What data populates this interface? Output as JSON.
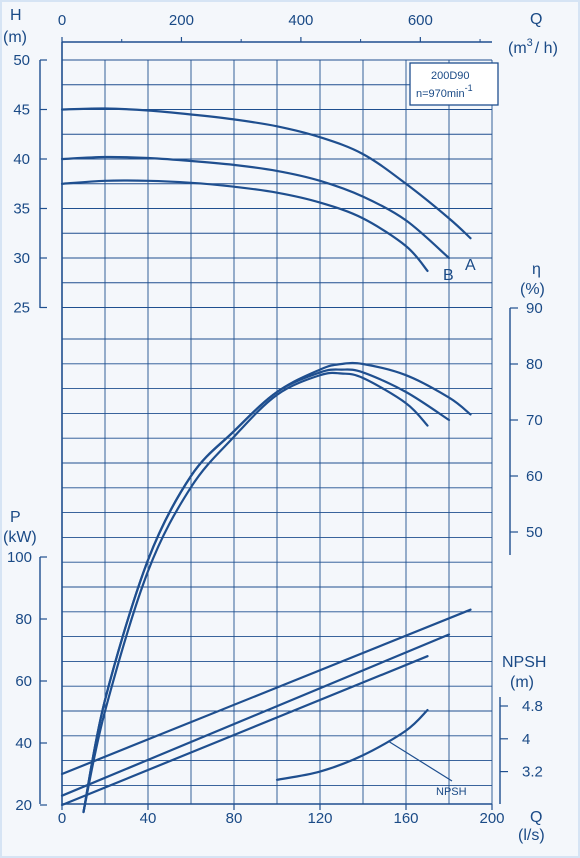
{
  "colors": {
    "line": "#1f4f8f",
    "grid": "#1f4f8f",
    "frame": "#d6e4f4",
    "text": "#1a4a86"
  },
  "labels": {
    "h_axis_title": "H",
    "h_axis_unit": "(m)",
    "q_top_title": "Q",
    "q_top_unit_open": "(m",
    "q_top_unit_sup": "3",
    "q_top_unit_close": "/ h)",
    "eta_title": "η",
    "eta_unit": "(%)",
    "p_title": "P",
    "p_unit": "(kW)",
    "npsh_title": "NPSH",
    "npsh_unit": "(m)",
    "q_bottom_title": "Q",
    "q_bottom_unit": "(l/s)",
    "model": "200D90",
    "speed_prefix": "n=970min",
    "speed_sup": "-1",
    "curve_a": "A",
    "curve_b": "B",
    "npsh_callout": "NPSH"
  },
  "chart_data": {
    "type": "line",
    "x_ticks_top": [
      "0",
      "200",
      "400",
      "600"
    ],
    "x_ticks_bottom": [
      "0",
      "40",
      "80",
      "120",
      "160",
      "200"
    ],
    "head_ticks": [
      "25",
      "30",
      "35",
      "40",
      "45",
      "50"
    ],
    "eff_ticks": [
      "50",
      "60",
      "70",
      "80",
      "90"
    ],
    "power_ticks": [
      "20",
      "40",
      "60",
      "80",
      "100"
    ],
    "npsh_ticks": [
      "3.2",
      "4",
      "4.8"
    ],
    "x_unit": "l/s",
    "xlim": [
      0,
      200
    ],
    "head_curves": [
      {
        "name": "",
        "x": [
          0,
          20,
          40,
          60,
          80,
          100,
          120,
          140,
          160,
          180,
          190
        ],
        "y": [
          45.0,
          45.1,
          44.9,
          44.5,
          44.0,
          43.3,
          42.2,
          40.5,
          37.5,
          34.0,
          32.0
        ]
      },
      {
        "name": "A",
        "x": [
          0,
          20,
          40,
          60,
          80,
          100,
          120,
          140,
          160,
          180
        ],
        "y": [
          40.0,
          40.2,
          40.1,
          39.8,
          39.4,
          38.8,
          37.8,
          36.2,
          33.8,
          30.0
        ]
      },
      {
        "name": "B",
        "x": [
          0,
          20,
          40,
          60,
          80,
          100,
          120,
          140,
          160,
          170
        ],
        "y": [
          37.5,
          37.8,
          37.8,
          37.6,
          37.2,
          36.6,
          35.6,
          34.0,
          31.2,
          28.7
        ]
      }
    ],
    "efficiency_curves": [
      {
        "name": "",
        "x": [
          10,
          20,
          40,
          60,
          80,
          100,
          120,
          130,
          140,
          160,
          180,
          190
        ],
        "y": [
          0,
          20,
          45,
          60,
          68,
          75,
          79,
          80.0,
          80.0,
          78,
          74,
          71
        ]
      },
      {
        "name": "",
        "x": [
          10,
          20,
          40,
          60,
          80,
          100,
          120,
          130,
          140,
          160,
          180
        ],
        "y": [
          0,
          20,
          45,
          60,
          68,
          75,
          78.5,
          79.0,
          78.5,
          75,
          70
        ]
      },
      {
        "name": "",
        "x": [
          10,
          20,
          40,
          60,
          80,
          100,
          120,
          130,
          140,
          160,
          170
        ],
        "y": [
          0,
          18,
          43,
          58,
          67,
          74.5,
          78,
          78.3,
          77.5,
          73,
          69
        ]
      }
    ],
    "power_curves": [
      {
        "name": "",
        "x": [
          0,
          190
        ],
        "y": [
          30,
          83
        ]
      },
      {
        "name": "",
        "x": [
          0,
          180
        ],
        "y": [
          23,
          75
        ]
      },
      {
        "name": "",
        "x": [
          0,
          170
        ],
        "y": [
          20,
          68
        ]
      }
    ],
    "npsh_curve": {
      "name": "NPSH",
      "x": [
        100,
        120,
        140,
        160,
        170
      ],
      "y": [
        3.0,
        3.2,
        3.6,
        4.2,
        4.7
      ]
    }
  }
}
